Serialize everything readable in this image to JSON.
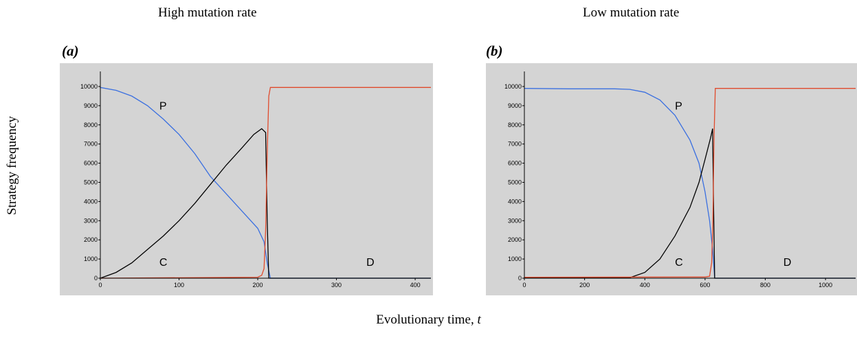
{
  "figure": {
    "ylabel": "Strategy frequency",
    "xlabel_main": "Evolutionary time, ",
    "xlabel_var": "t"
  },
  "chart_data": [
    {
      "type": "line",
      "column_title": "High mutation rate",
      "panel_label": "(a)",
      "xlim": [
        0,
        420
      ],
      "ylim": [
        0,
        10500
      ],
      "xticks": [
        0,
        100,
        200,
        300,
        400
      ],
      "yticks": [
        0,
        1000,
        2000,
        3000,
        4000,
        5000,
        6000,
        7000,
        8000,
        9000,
        10000
      ],
      "grid": false,
      "background": "#d4d4d4",
      "series": [
        {
          "name": "P",
          "color": "#3a6fe0",
          "label_pos": {
            "x": 75,
            "y": 8800
          },
          "points": [
            [
              0,
              9950
            ],
            [
              20,
              9800
            ],
            [
              40,
              9500
            ],
            [
              60,
              9000
            ],
            [
              80,
              8300
            ],
            [
              100,
              7500
            ],
            [
              120,
              6500
            ],
            [
              140,
              5300
            ],
            [
              160,
              4400
            ],
            [
              180,
              3500
            ],
            [
              200,
              2600
            ],
            [
              208,
              1900
            ],
            [
              212,
              800
            ],
            [
              216,
              0
            ],
            [
              420,
              0
            ]
          ]
        },
        {
          "name": "C",
          "color": "#000000",
          "label_pos": {
            "x": 75,
            "y": 650
          },
          "points": [
            [
              0,
              0
            ],
            [
              20,
              300
            ],
            [
              40,
              800
            ],
            [
              60,
              1500
            ],
            [
              80,
              2200
            ],
            [
              100,
              3000
            ],
            [
              120,
              3900
            ],
            [
              140,
              4900
            ],
            [
              160,
              5900
            ],
            [
              180,
              6800
            ],
            [
              195,
              7500
            ],
            [
              205,
              7800
            ],
            [
              210,
              7600
            ],
            [
              212,
              3000
            ],
            [
              214,
              0
            ],
            [
              420,
              0
            ]
          ]
        },
        {
          "name": "D",
          "color": "#e04a2c",
          "label_pos": {
            "x": 338,
            "y": 650
          },
          "points": [
            [
              0,
              0
            ],
            [
              200,
              50
            ],
            [
              205,
              150
            ],
            [
              208,
              500
            ],
            [
              210,
              2500
            ],
            [
              212,
              6500
            ],
            [
              214,
              9500
            ],
            [
              216,
              9950
            ],
            [
              420,
              9950
            ]
          ]
        }
      ]
    },
    {
      "type": "line",
      "column_title": "Low mutation rate",
      "panel_label": "(b)",
      "xlim": [
        0,
        1100
      ],
      "ylim": [
        0,
        10500
      ],
      "xticks": [
        0,
        200,
        400,
        600,
        800,
        1000
      ],
      "yticks": [
        0,
        1000,
        2000,
        3000,
        4000,
        5000,
        6000,
        7000,
        8000,
        9000,
        10000
      ],
      "grid": false,
      "background": "#d4d4d4",
      "series": [
        {
          "name": "P",
          "color": "#3a6fe0",
          "label_pos": {
            "x": 500,
            "y": 8800
          },
          "points": [
            [
              0,
              9900
            ],
            [
              150,
              9880
            ],
            [
              300,
              9880
            ],
            [
              350,
              9850
            ],
            [
              400,
              9700
            ],
            [
              450,
              9300
            ],
            [
              500,
              8500
            ],
            [
              550,
              7200
            ],
            [
              580,
              6000
            ],
            [
              600,
              4500
            ],
            [
              615,
              3000
            ],
            [
              625,
              1500
            ],
            [
              632,
              0
            ],
            [
              1100,
              0
            ]
          ]
        },
        {
          "name": "C",
          "color": "#000000",
          "label_pos": {
            "x": 500,
            "y": 650
          },
          "points": [
            [
              0,
              20
            ],
            [
              300,
              20
            ],
            [
              350,
              30
            ],
            [
              400,
              300
            ],
            [
              450,
              1000
            ],
            [
              500,
              2200
            ],
            [
              550,
              3700
            ],
            [
              580,
              5000
            ],
            [
              600,
              6200
            ],
            [
              618,
              7300
            ],
            [
              625,
              7800
            ],
            [
              628,
              4000
            ],
            [
              632,
              0
            ],
            [
              1100,
              0
            ]
          ]
        },
        {
          "name": "D",
          "color": "#e04a2c",
          "label_pos": {
            "x": 860,
            "y": 650
          },
          "points": [
            [
              0,
              50
            ],
            [
              600,
              60
            ],
            [
              615,
              100
            ],
            [
              622,
              800
            ],
            [
              626,
              3000
            ],
            [
              630,
              7500
            ],
            [
              634,
              9900
            ],
            [
              1100,
              9900
            ]
          ]
        }
      ]
    }
  ]
}
